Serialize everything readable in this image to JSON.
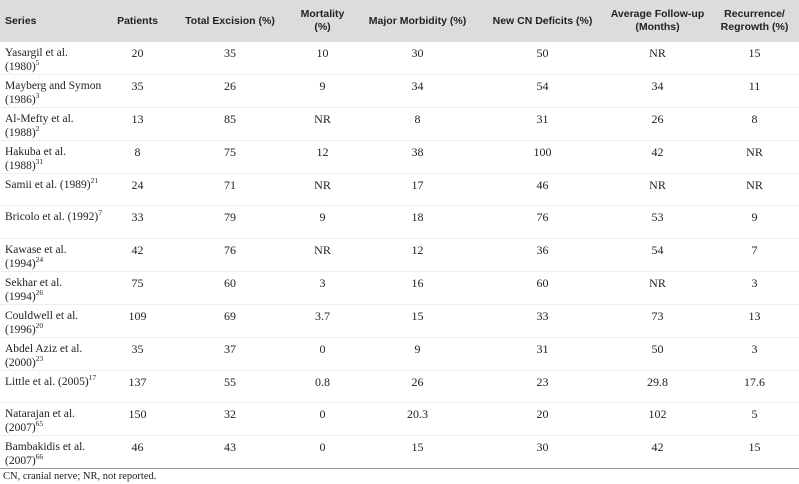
{
  "table": {
    "columns": [
      "Series",
      "Patients",
      "Total Excision (%)",
      "Mortality (%)",
      "Major Morbidity (%)",
      "New CN Deficits (%)",
      "Average Follow-up (Months)",
      "Recurrence/ Regrowth (%)"
    ],
    "rows": [
      {
        "series": "Yasargil et al. (1980)",
        "ref": "5",
        "cells": [
          "20",
          "35",
          "10",
          "30",
          "50",
          "NR",
          "15"
        ]
      },
      {
        "series": "Mayberg and Symon (1986)",
        "ref": "3",
        "cells": [
          "35",
          "26",
          "9",
          "34",
          "54",
          "34",
          "11"
        ]
      },
      {
        "series": "Al-Mefty et al. (1988)",
        "ref": "2",
        "cells": [
          "13",
          "85",
          "NR",
          "8",
          "31",
          "26",
          "8"
        ]
      },
      {
        "series": "Hakuba et al. (1988)",
        "ref": "31",
        "cells": [
          "8",
          "75",
          "12",
          "38",
          "100",
          "42",
          "NR"
        ]
      },
      {
        "series": "Samii et al. (1989)",
        "ref": "21",
        "cells": [
          "24",
          "71",
          "NR",
          "17",
          "46",
          "NR",
          "NR"
        ]
      },
      {
        "series": "Bricolo et al. (1992)",
        "ref": "7",
        "cells": [
          "33",
          "79",
          "9",
          "18",
          "76",
          "53",
          "9"
        ]
      },
      {
        "series": "Kawase et al. (1994)",
        "ref": "24",
        "cells": [
          "42",
          "76",
          "NR",
          "12",
          "36",
          "54",
          "7"
        ]
      },
      {
        "series": "Sekhar et al. (1994)",
        "ref": "26",
        "cells": [
          "75",
          "60",
          "3",
          "16",
          "60",
          "NR",
          "3"
        ]
      },
      {
        "series": "Couldwell et al. (1996)",
        "ref": "20",
        "cells": [
          "109",
          "69",
          "3.7",
          "15",
          "33",
          "73",
          "13"
        ]
      },
      {
        "series": "Abdel Aziz et al. (2000)",
        "ref": "23",
        "cells": [
          "35",
          "37",
          "0",
          "9",
          "31",
          "50",
          "3"
        ]
      },
      {
        "series": "Little et al. (2005)",
        "ref": "17",
        "cells": [
          "137",
          "55",
          "0.8",
          "26",
          "23",
          "29.8",
          "17.6"
        ]
      },
      {
        "series": "Natarajan et al. (2007)",
        "ref": "65",
        "cells": [
          "150",
          "32",
          "0",
          "20.3",
          "20",
          "102",
          "5"
        ]
      },
      {
        "series": "Bambakidis et al. (2007)",
        "ref": "66",
        "cells": [
          "46",
          "43",
          "0",
          "15",
          "30",
          "42",
          "15"
        ]
      }
    ],
    "footnote": "CN, cranial nerve; NR, not reported."
  }
}
